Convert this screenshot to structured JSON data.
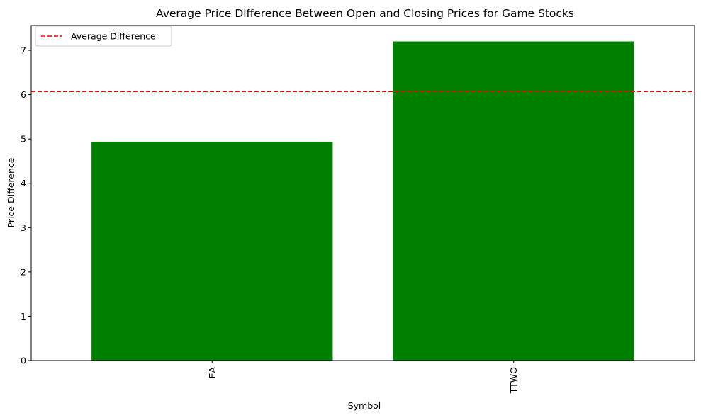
{
  "chart_data": {
    "type": "bar",
    "title": "Average Price Difference Between Open and Closing Prices for Game Stocks",
    "xlabel": "Symbol",
    "ylabel": "Price Difference",
    "categories": [
      "EA",
      "TTWO"
    ],
    "values": [
      4.94,
      7.2
    ],
    "ylim": [
      0,
      7.56
    ],
    "yticks": [
      0,
      1,
      2,
      3,
      4,
      5,
      6,
      7
    ],
    "bar_color": "#008000",
    "reference_line": {
      "label": "Average Difference",
      "value": 6.07,
      "color": "#ff0000",
      "style": "dashed"
    },
    "legend": {
      "position": "top-left",
      "entries": [
        "Average Difference"
      ]
    },
    "grid": false,
    "xtick_rotation": 90
  }
}
